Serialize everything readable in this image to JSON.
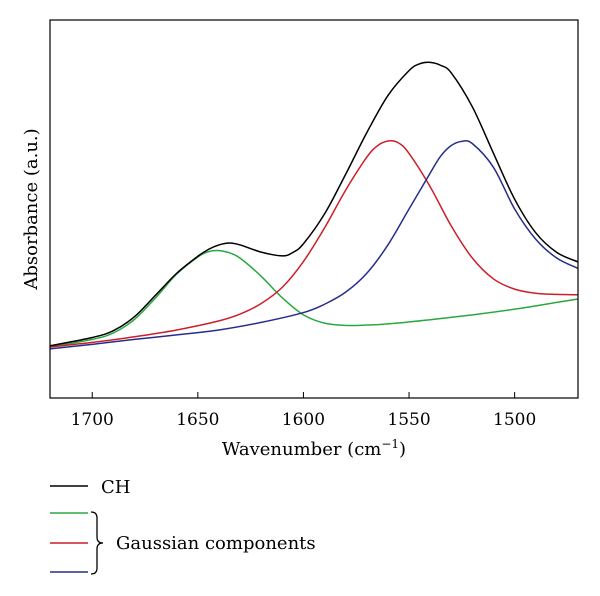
{
  "chart_data": {
    "type": "line",
    "xlabel": "Wavenumber (cm",
    "xlabel_superscript": "−1",
    "xlabel_close": ")",
    "ylabel": "Absorbance (a.u.)",
    "xlim": [
      1720,
      1470
    ],
    "x_reversed": true,
    "ylim": [
      0,
      1
    ],
    "y_tick_labels_shown": false,
    "x_ticks": [
      1700,
      1650,
      1600,
      1550,
      1500
    ],
    "x_tick_labels": [
      "1700",
      "1650",
      "1600",
      "1550",
      "1500"
    ],
    "grid": false,
    "legend_position": "below-left",
    "legend_group_label": "Gaussian components",
    "series": [
      {
        "name": "CH",
        "color": "#000000",
        "x": [
          1720,
          1700,
          1690,
          1680,
          1670,
          1660,
          1650,
          1645,
          1640,
          1635,
          1630,
          1620,
          1610,
          1605,
          1600,
          1590,
          1580,
          1570,
          1560,
          1550,
          1545,
          1540,
          1535,
          1530,
          1520,
          1510,
          1500,
          1490,
          1480,
          1470
        ],
        "y": [
          0.138,
          0.16,
          0.178,
          0.215,
          0.272,
          0.33,
          0.375,
          0.393,
          0.405,
          0.41,
          0.405,
          0.386,
          0.376,
          0.385,
          0.408,
          0.487,
          0.592,
          0.702,
          0.8,
          0.866,
          0.884,
          0.888,
          0.88,
          0.86,
          0.77,
          0.647,
          0.526,
          0.437,
          0.385,
          0.36
        ]
      },
      {
        "color": "#2aa840",
        "x": [
          1720,
          1700,
          1690,
          1680,
          1670,
          1660,
          1650,
          1645,
          1640,
          1635,
          1630,
          1620,
          1610,
          1600,
          1590,
          1580,
          1570,
          1560,
          1540,
          1520,
          1500,
          1480,
          1470
        ],
        "y": [
          0.135,
          0.155,
          0.172,
          0.208,
          0.265,
          0.328,
          0.373,
          0.387,
          0.39,
          0.384,
          0.37,
          0.322,
          0.265,
          0.22,
          0.198,
          0.192,
          0.193,
          0.196,
          0.207,
          0.22,
          0.235,
          0.253,
          0.262
        ]
      },
      {
        "color": "#cc1f2a",
        "x": [
          1720,
          1700,
          1680,
          1660,
          1640,
          1630,
          1620,
          1610,
          1600,
          1590,
          1580,
          1570,
          1565,
          1560,
          1555,
          1550,
          1540,
          1530,
          1520,
          1510,
          1500,
          1490,
          1480,
          1470
        ],
        "y": [
          0.135,
          0.147,
          0.162,
          0.18,
          0.204,
          0.222,
          0.25,
          0.293,
          0.361,
          0.45,
          0.55,
          0.637,
          0.667,
          0.68,
          0.675,
          0.647,
          0.559,
          0.455,
          0.37,
          0.315,
          0.288,
          0.277,
          0.274,
          0.273
        ]
      },
      {
        "color": "#262e8a",
        "x": [
          1720,
          1700,
          1680,
          1660,
          1640,
          1620,
          1600,
          1590,
          1580,
          1570,
          1560,
          1550,
          1540,
          1535,
          1530,
          1525,
          1520,
          1510,
          1500,
          1490,
          1480,
          1470
        ],
        "y": [
          0.13,
          0.142,
          0.155,
          0.167,
          0.18,
          0.2,
          0.226,
          0.248,
          0.28,
          0.33,
          0.405,
          0.5,
          0.595,
          0.64,
          0.668,
          0.679,
          0.673,
          0.61,
          0.5,
          0.42,
          0.37,
          0.343
        ]
      }
    ]
  }
}
